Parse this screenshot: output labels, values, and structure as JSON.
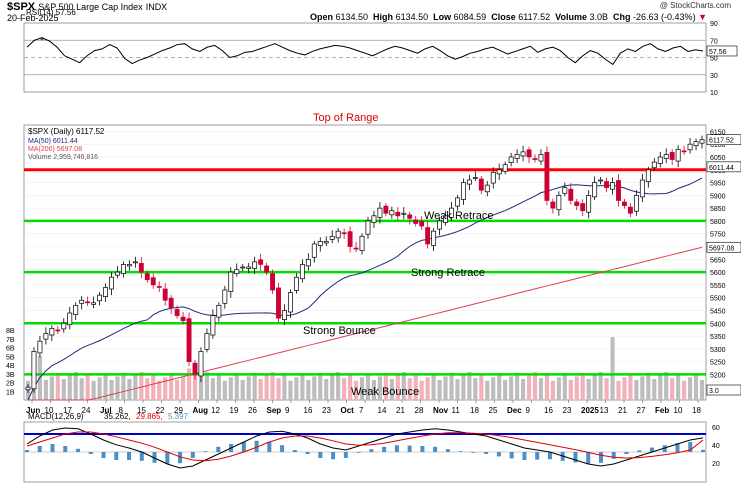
{
  "header": {
    "symbol": "$SPX",
    "name": "S&P 500 Large Cap Index",
    "exchange": "INDX",
    "date": "20-Feb-2025",
    "copyright": "@ StockCharts.com",
    "open_label": "Open",
    "open": "6134.50",
    "high_label": "High",
    "high": "6134.50",
    "low_label": "Low",
    "low": "6084.59",
    "close_label": "Close",
    "close": "6117.52",
    "volume_label": "Volume",
    "volume": "3.0B",
    "chg_label": "Chg",
    "chg": "-26.63 (-0.43%)"
  },
  "colors": {
    "up": "#000000",
    "down": "#cc0033",
    "ma50": "#1f2a80",
    "ma200": "#e04050",
    "volume": "#bdbdbd",
    "volume_down": "#f2b0b8",
    "resistance": "#ff0000",
    "support": "#00dd00",
    "macd_hist": "#4a8fc7",
    "rsi_fill": "#3c7a3c",
    "annotation_red": "#e00000"
  },
  "chart_data": [
    {
      "type": "line",
      "panel": "RSI",
      "legend": "RSI(14) 57.56",
      "series": [
        {
          "name": "RSI(14)",
          "values": [
            62,
            70,
            73,
            69,
            62,
            52,
            48,
            44,
            52,
            58,
            60,
            65,
            61,
            49,
            43,
            47,
            50,
            54,
            58,
            61,
            65,
            66,
            60,
            57,
            62,
            64,
            58,
            50,
            52,
            56,
            57,
            60,
            63,
            66,
            62,
            58,
            55,
            53,
            57,
            60,
            62,
            64,
            63,
            61,
            58,
            55,
            52,
            56,
            60,
            63,
            61,
            58,
            55,
            60,
            63,
            58,
            52,
            48,
            51,
            55,
            57,
            60,
            62,
            58,
            54,
            57,
            60,
            63,
            56,
            60,
            62,
            58,
            50,
            44,
            52,
            58,
            55,
            48,
            42,
            55,
            60,
            57,
            63,
            66,
            60,
            57,
            61,
            63,
            57,
            59,
            57.56
          ]
        }
      ],
      "ylim": [
        10,
        90
      ],
      "ticks": [
        10,
        30,
        50,
        70,
        90
      ],
      "levels": [
        30,
        50,
        70
      ],
      "last_value": "57.56"
    },
    {
      "type": "candlestick",
      "panel": "price",
      "legend": [
        "$SPX (Daily) 6117.52",
        "MA(50) 6011.44",
        "MA(200) 5697.08",
        "Volume 2,959,746,816"
      ],
      "ylim": [
        5100,
        6175
      ],
      "yticks": [
        5150,
        5200,
        5250,
        5300,
        5350,
        5400,
        5450,
        5500,
        5550,
        5600,
        5650,
        5700,
        5750,
        5800,
        5850,
        5900,
        5950,
        6000,
        6050,
        6100,
        6150
      ],
      "x_labels": [
        "Jun",
        "10",
        "17",
        "24",
        "Jul",
        "8",
        "15",
        "22",
        "29",
        "Aug",
        "12",
        "19",
        "26",
        "Sep",
        "9",
        "16",
        "23",
        "Oct",
        "7",
        "14",
        "21",
        "28",
        "Nov",
        "11",
        "18",
        "25",
        "Dec",
        "9",
        "16",
        "23",
        "2025",
        "13",
        "21",
        "27",
        "Feb",
        "10",
        "18"
      ],
      "closes": [
        5150,
        5290,
        5330,
        5360,
        5380,
        5370,
        5400,
        5440,
        5470,
        5490,
        5480,
        5480,
        5510,
        5540,
        5580,
        5600,
        5630,
        5630,
        5640,
        5600,
        5570,
        5550,
        5540,
        5490,
        5460,
        5430,
        5410,
        5250,
        5200,
        5290,
        5360,
        5430,
        5470,
        5530,
        5600,
        5610,
        5620,
        5620,
        5640,
        5630,
        5600,
        5530,
        5420,
        5450,
        5520,
        5580,
        5630,
        5650,
        5710,
        5720,
        5720,
        5740,
        5760,
        5750,
        5700,
        5690,
        5740,
        5800,
        5820,
        5850,
        5830,
        5840,
        5820,
        5830,
        5810,
        5790,
        5780,
        5710,
        5760,
        5800,
        5820,
        5850,
        5890,
        5950,
        5960,
        5970,
        5920,
        5940,
        5990,
        6000,
        6020,
        6050,
        6060,
        6070,
        6050,
        6040,
        6060,
        5880,
        5850,
        5900,
        5930,
        5880,
        5860,
        5840,
        5900,
        5950,
        5960,
        5930,
        5950,
        5880,
        5860,
        5830,
        5900,
        5960,
        6000,
        6030,
        6050,
        6060,
        6040,
        6080,
        6070,
        6100,
        6110,
        6117.52
      ],
      "ma50_last": "6011.44",
      "ma200_last": "5697.08",
      "last_price": "6117.52",
      "support_resistance": [
        {
          "level": 6000,
          "kind": "resistance",
          "color": "#ff0000"
        },
        {
          "level": 5800,
          "kind": "support",
          "color": "#00dd00"
        },
        {
          "level": 5600,
          "kind": "support",
          "color": "#00dd00"
        },
        {
          "level": 5400,
          "kind": "support",
          "color": "#00dd00"
        },
        {
          "level": 5200,
          "kind": "support",
          "color": "#00dd00"
        }
      ],
      "annotations": [
        "Top of Range",
        "Weak Retrace",
        "Strong Retrace",
        "Strong Bounce",
        "Weak Bounce"
      ],
      "volume_axis": [
        "1B",
        "2B",
        "3B",
        "4B",
        "5B",
        "6B",
        "7B",
        "8B"
      ],
      "volume_last": "2,959,746,816",
      "volume_scale_label": "3.0"
    },
    {
      "type": "line",
      "panel": "MACD",
      "legend_parts": [
        "MACD(12,26,9)",
        "35.262,",
        "29.865,",
        "5.397"
      ],
      "series": [
        {
          "name": "MACD",
          "values": [
            20,
            40,
            55,
            60,
            58,
            45,
            30,
            18,
            10,
            0,
            -15,
            -30,
            -40,
            -35,
            -20,
            -5,
            10,
            25,
            40,
            50,
            52,
            45,
            35,
            20,
            10,
            5,
            15,
            25,
            35,
            45,
            50,
            55,
            58,
            55,
            50,
            45,
            40,
            30,
            20,
            10,
            5,
            0,
            -10,
            -20,
            -30,
            -35,
            -30,
            -20,
            -10,
            0,
            10,
            20,
            30,
            35.262
          ]
        },
        {
          "name": "Signal",
          "values": [
            15,
            25,
            35,
            45,
            50,
            50,
            45,
            38,
            30,
            22,
            12,
            0,
            -12,
            -20,
            -22,
            -18,
            -10,
            0,
            12,
            25,
            35,
            40,
            40,
            35,
            28,
            20,
            17,
            18,
            22,
            28,
            34,
            40,
            45,
            48,
            48,
            47,
            45,
            41,
            36,
            30,
            24,
            18,
            12,
            6,
            -1,
            -8,
            -13,
            -15,
            -14,
            -11,
            -7,
            -2,
            5,
            29.865
          ]
        }
      ],
      "histogram_last": "5.397",
      "yticks": [
        "60",
        "40",
        "20"
      ]
    }
  ]
}
